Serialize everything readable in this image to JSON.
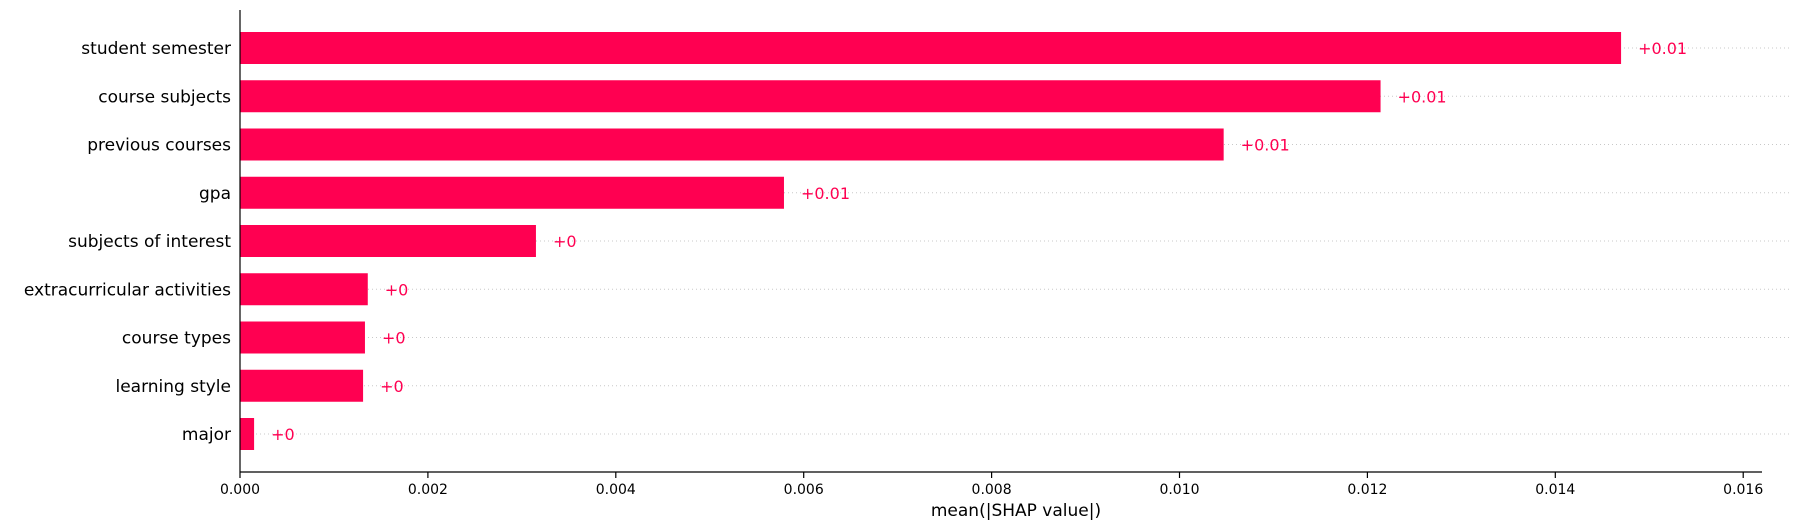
{
  "chart_data": {
    "type": "bar",
    "orientation": "horizontal",
    "categories": [
      "student semester",
      "course subjects",
      "previous courses",
      "gpa",
      "subjects of interest",
      "extracurricular activities",
      "course types",
      "learning style",
      "major"
    ],
    "values": [
      0.0147,
      0.01214,
      0.01047,
      0.00579,
      0.00315,
      0.00136,
      0.00133,
      0.00131,
      0.00015
    ],
    "value_labels": [
      "+0.01",
      "+0.01",
      "+0.01",
      "+0.01",
      "+0",
      "+0",
      "+0",
      "+0",
      "+0"
    ],
    "xlabel": "mean(|SHAP value|)",
    "ylabel": "",
    "xlim": [
      0,
      0.0162
    ],
    "xticks": [
      0.0,
      0.002,
      0.004,
      0.006,
      0.008,
      0.01,
      0.012,
      0.014,
      0.016
    ],
    "xtick_labels": [
      "0.000",
      "0.002",
      "0.004",
      "0.006",
      "0.008",
      "0.010",
      "0.012",
      "0.014",
      "0.016"
    ],
    "bar_color": "#ff0051",
    "grid": "horizontal dotted lines per row"
  }
}
